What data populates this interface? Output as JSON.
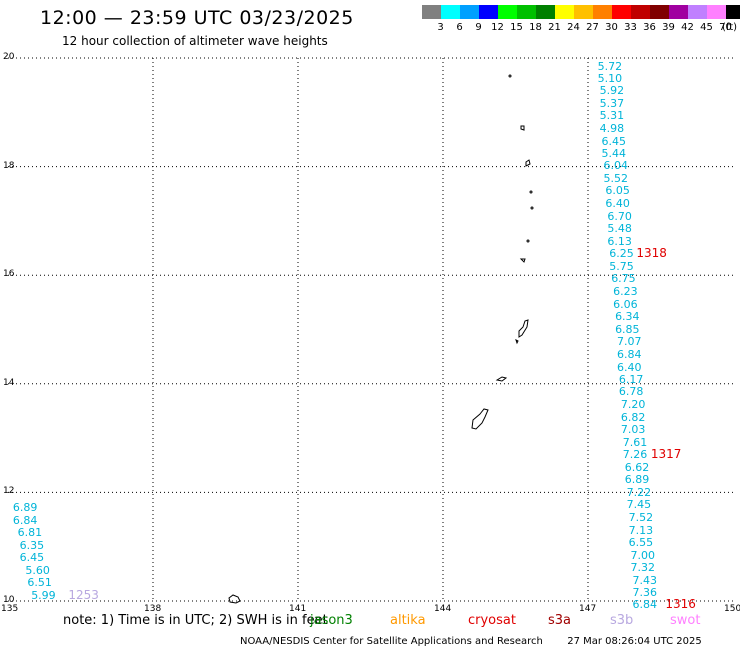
{
  "header": {
    "title": "12:00 — 23:59 UTC 03/23/2025",
    "subtitle": "12 hour collection of altimeter wave heights"
  },
  "legend": {
    "unit": "(ft)",
    "items": [
      {
        "label": "3",
        "color": "#808080"
      },
      {
        "label": "6",
        "color": "#00ffff"
      },
      {
        "label": "9",
        "color": "#00a0ff"
      },
      {
        "label": "12",
        "color": "#0000ff"
      },
      {
        "label": "15",
        "color": "#00ff00"
      },
      {
        "label": "18",
        "color": "#00c000"
      },
      {
        "label": "21",
        "color": "#008000"
      },
      {
        "label": "24",
        "color": "#ffff00"
      },
      {
        "label": "27",
        "color": "#ffc000"
      },
      {
        "label": "30",
        "color": "#ff8000"
      },
      {
        "label": "33",
        "color": "#ff0000"
      },
      {
        "label": "36",
        "color": "#c00000"
      },
      {
        "label": "39",
        "color": "#800000"
      },
      {
        "label": "42",
        "color": "#a000a0"
      },
      {
        "label": "45",
        "color": "#c080ff"
      },
      {
        "label": "70",
        "color": "#ff80ff"
      },
      {
        "label": "",
        "color": "#000000"
      }
    ]
  },
  "map": {
    "lon_range": [
      135,
      150
    ],
    "lat_range": [
      10,
      20
    ],
    "x_ticks": [
      "135",
      "138",
      "141",
      "144",
      "147",
      "150"
    ],
    "y_ticks": [
      "20",
      "18",
      "16",
      "14",
      "12",
      "10"
    ],
    "wave_points": [
      {
        "lon": 147.2,
        "lat": 19.84,
        "value": "5.72",
        "sat": "jason3"
      },
      {
        "lon": 147.2,
        "lat": 19.62,
        "value": "5.10",
        "sat": "jason3"
      },
      {
        "lon": 147.24,
        "lat": 19.39,
        "value": "5.92",
        "sat": "jason3"
      },
      {
        "lon": 147.24,
        "lat": 19.16,
        "value": "5.37",
        "sat": "jason3"
      },
      {
        "lon": 147.24,
        "lat": 18.93,
        "value": "5.31",
        "sat": "jason3"
      },
      {
        "lon": 147.24,
        "lat": 18.7,
        "value": "4.98",
        "sat": "jason3"
      },
      {
        "lon": 147.28,
        "lat": 18.46,
        "value": "6.45",
        "sat": "jason3"
      },
      {
        "lon": 147.28,
        "lat": 18.24,
        "value": "5.44",
        "sat": "jason3"
      },
      {
        "lon": 147.32,
        "lat": 18.01,
        "value": "6.04",
        "sat": "jason3"
      },
      {
        "lon": 147.32,
        "lat": 17.78,
        "value": "5.52",
        "sat": "jason3"
      },
      {
        "lon": 147.36,
        "lat": 17.55,
        "value": "6.05",
        "sat": "jason3"
      },
      {
        "lon": 147.36,
        "lat": 17.31,
        "value": "6.40",
        "sat": "jason3"
      },
      {
        "lon": 147.4,
        "lat": 17.08,
        "value": "6.70",
        "sat": "jason3"
      },
      {
        "lon": 147.4,
        "lat": 16.85,
        "value": "5.48",
        "sat": "jason3"
      },
      {
        "lon": 147.4,
        "lat": 16.62,
        "value": "6.13",
        "sat": "jason3"
      },
      {
        "lon": 147.44,
        "lat": 16.39,
        "value": "6.25",
        "sat": "jason3"
      },
      {
        "lon": 147.44,
        "lat": 16.16,
        "value": "5.75",
        "sat": "jason3"
      },
      {
        "lon": 147.48,
        "lat": 15.93,
        "value": "6.75",
        "sat": "jason3"
      },
      {
        "lon": 147.52,
        "lat": 15.69,
        "value": "6.23",
        "sat": "jason3"
      },
      {
        "lon": 147.52,
        "lat": 15.46,
        "value": "6.06",
        "sat": "jason3"
      },
      {
        "lon": 147.56,
        "lat": 15.23,
        "value": "6.34",
        "sat": "jason3"
      },
      {
        "lon": 147.56,
        "lat": 15.0,
        "value": "6.85",
        "sat": "jason3"
      },
      {
        "lon": 147.6,
        "lat": 14.77,
        "value": "7.07",
        "sat": "jason3"
      },
      {
        "lon": 147.6,
        "lat": 14.53,
        "value": "6.84",
        "sat": "jason3"
      },
      {
        "lon": 147.6,
        "lat": 14.3,
        "value": "6.40",
        "sat": "jason3"
      },
      {
        "lon": 147.64,
        "lat": 14.07,
        "value": "6.17",
        "sat": "jason3"
      },
      {
        "lon": 147.64,
        "lat": 13.84,
        "value": "6.78",
        "sat": "jason3"
      },
      {
        "lon": 147.68,
        "lat": 13.61,
        "value": "7.20",
        "sat": "jason3"
      },
      {
        "lon": 147.68,
        "lat": 13.37,
        "value": "6.82",
        "sat": "jason3"
      },
      {
        "lon": 147.68,
        "lat": 13.14,
        "value": "7.03",
        "sat": "jason3"
      },
      {
        "lon": 147.72,
        "lat": 12.91,
        "value": "7.61",
        "sat": "jason3"
      },
      {
        "lon": 147.72,
        "lat": 12.68,
        "value": "7.26",
        "sat": "jason3"
      },
      {
        "lon": 147.76,
        "lat": 12.45,
        "value": "6.62",
        "sat": "jason3"
      },
      {
        "lon": 147.76,
        "lat": 12.22,
        "value": "6.89",
        "sat": "jason3"
      },
      {
        "lon": 147.8,
        "lat": 11.99,
        "value": "7.22",
        "sat": "jason3"
      },
      {
        "lon": 147.8,
        "lat": 11.76,
        "value": "7.45",
        "sat": "jason3"
      },
      {
        "lon": 147.84,
        "lat": 11.52,
        "value": "7.52",
        "sat": "jason3"
      },
      {
        "lon": 147.84,
        "lat": 11.29,
        "value": "7.13",
        "sat": "jason3"
      },
      {
        "lon": 147.84,
        "lat": 11.06,
        "value": "6.55",
        "sat": "jason3"
      },
      {
        "lon": 147.88,
        "lat": 10.83,
        "value": "7.00",
        "sat": "jason3"
      },
      {
        "lon": 147.88,
        "lat": 10.6,
        "value": "7.32",
        "sat": "jason3"
      },
      {
        "lon": 147.92,
        "lat": 10.37,
        "value": "7.43",
        "sat": "jason3"
      },
      {
        "lon": 147.92,
        "lat": 10.14,
        "value": "7.36",
        "sat": "jason3"
      },
      {
        "lon": 147.92,
        "lat": 9.92,
        "value": "6.84",
        "sat": "jason3"
      },
      {
        "lon": 135.1,
        "lat": 11.71,
        "value": "6.89",
        "sat": "jason3"
      },
      {
        "lon": 135.1,
        "lat": 11.48,
        "value": "6.84",
        "sat": "jason3"
      },
      {
        "lon": 135.2,
        "lat": 11.25,
        "value": "6.81",
        "sat": "jason3"
      },
      {
        "lon": 135.24,
        "lat": 11.02,
        "value": "6.35",
        "sat": "jason3"
      },
      {
        "lon": 135.24,
        "lat": 10.79,
        "value": "6.45",
        "sat": "jason3"
      },
      {
        "lon": 135.36,
        "lat": 10.56,
        "value": "5.60",
        "sat": "jason3"
      },
      {
        "lon": 135.4,
        "lat": 10.33,
        "value": "6.51",
        "sat": "jason3"
      },
      {
        "lon": 135.48,
        "lat": 10.1,
        "value": "5.99",
        "sat": "jason3"
      }
    ],
    "track_labels": [
      {
        "lon": 148.0,
        "lat": 16.39,
        "value": "1318",
        "sat": "cryosat"
      },
      {
        "lon": 148.3,
        "lat": 12.68,
        "value": "1317",
        "sat": "cryosat"
      },
      {
        "lon": 148.6,
        "lat": 9.92,
        "value": "1316",
        "sat": "cryosat"
      },
      {
        "lon": 136.25,
        "lat": 10.1,
        "value": "1253",
        "sat": "s3b"
      }
    ]
  },
  "note": "note: 1) Time is in UTC; 2) SWH is in feet",
  "satellites": [
    {
      "name": "jason3",
      "color": "#008000"
    },
    {
      "name": "altika",
      "color": "#ff9900"
    },
    {
      "name": "cryosat",
      "color": "#e00000"
    },
    {
      "name": "s3a",
      "color": "#a00000"
    },
    {
      "name": "s3b",
      "color": "#b8a8e0"
    },
    {
      "name": "swot",
      "color": "#ff80ff"
    }
  ],
  "footer": {
    "org": "NOAA/NESDIS Center for Satellite Applications and Research",
    "timestamp": "27 Mar 08:26:04 UTC 2025"
  }
}
